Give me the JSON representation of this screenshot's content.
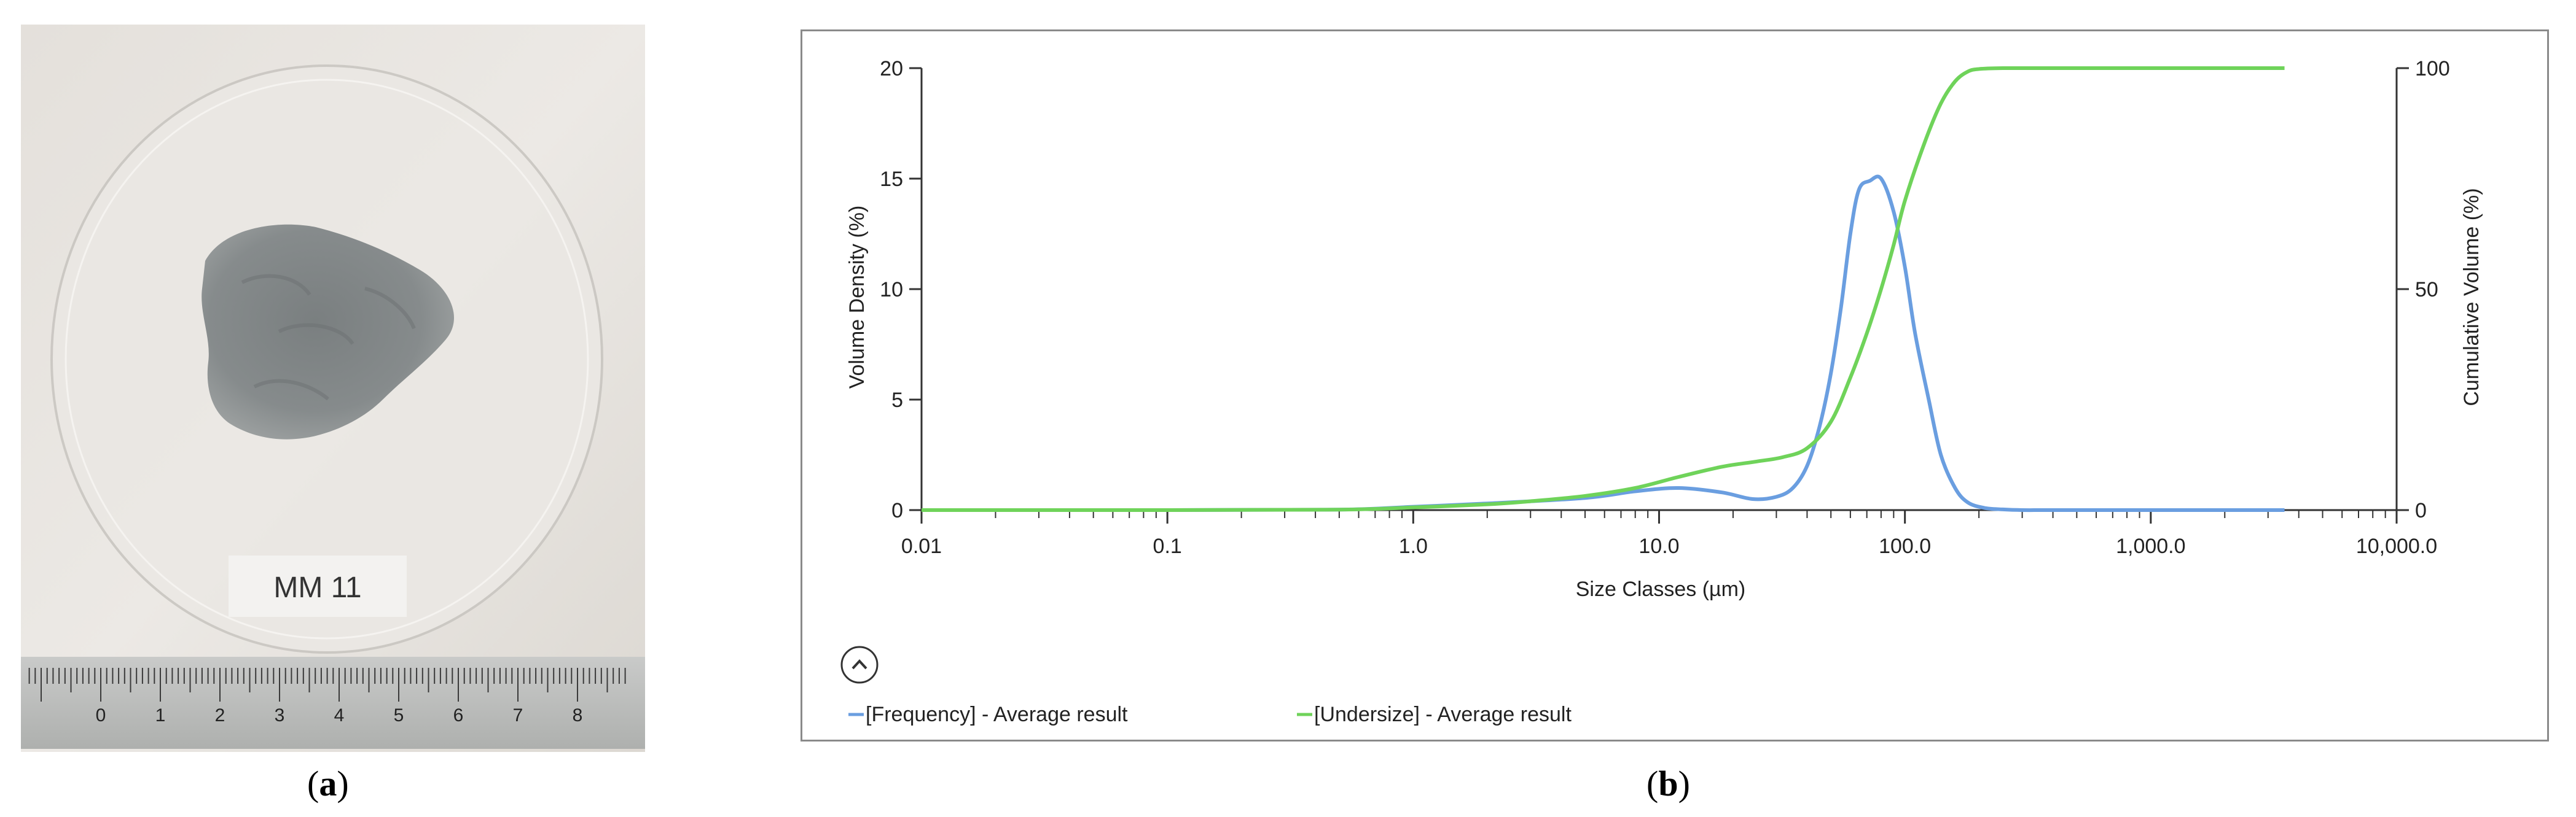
{
  "panels": {
    "a": {
      "open": "(",
      "letter": "a",
      "close": ")"
    },
    "b": {
      "open": "(",
      "letter": "b",
      "close": ")"
    }
  },
  "photo": {
    "sample_label": "MM 11",
    "ruler_ticks": [
      "0",
      "1",
      "2",
      "3",
      "4",
      "5",
      "6",
      "7",
      "8"
    ]
  },
  "chart_data": {
    "type": "line",
    "xlabel": "Size Classes (µm)",
    "ylabel": "Volume Density (%)",
    "y2label": "Cumulative Volume (%)",
    "xscale": "log",
    "xlim": [
      0.01,
      10000
    ],
    "ylim": [
      0,
      20
    ],
    "y2lim": [
      0,
      100
    ],
    "x_tick_labels": [
      "0.01",
      "0.1",
      "1.0",
      "10.0",
      "100.0",
      "1,000.0",
      "10,000.0"
    ],
    "y_tick_labels": [
      "0",
      "5",
      "10",
      "15",
      "20"
    ],
    "y2_tick_labels": [
      "0",
      "50",
      "100"
    ],
    "grid": false,
    "legend_placement": "bottom-left",
    "series": [
      {
        "name": "[Frequency] - Average result",
        "color": "#6a9ee0",
        "axis": "left",
        "x": [
          0.01,
          0.1,
          0.5,
          1.0,
          2.0,
          5.0,
          8.0,
          12.0,
          18.0,
          24.0,
          30.0,
          35.0,
          40.0,
          45.0,
          50.0,
          55.0,
          60.0,
          65.0,
          72.0,
          80.0,
          90.0,
          100.0,
          110.0,
          125.0,
          140.0,
          160.0,
          180.0,
          210.0,
          250.0,
          300.0,
          400.0,
          1000.0,
          3500.0
        ],
        "y": [
          0,
          0,
          0.02,
          0.15,
          0.3,
          0.55,
          0.85,
          1.0,
          0.8,
          0.5,
          0.6,
          1.0,
          2.0,
          3.8,
          6.2,
          9.2,
          12.5,
          14.5,
          14.9,
          15.0,
          13.5,
          11.0,
          8.0,
          5.0,
          2.5,
          1.0,
          0.35,
          0.1,
          0.03,
          0,
          0,
          0,
          0
        ]
      },
      {
        "name": "[Undersize] - Average result",
        "color": "#6fd35a",
        "axis": "right",
        "x": [
          0.01,
          0.1,
          0.5,
          1.0,
          2.0,
          3.0,
          5.0,
          8.0,
          12.0,
          18.0,
          25.0,
          32.0,
          40.0,
          50.0,
          60.0,
          70.0,
          80.0,
          90.0,
          100.0,
          120.0,
          140.0,
          160.0,
          180.0,
          200.0,
          250.0,
          400.0,
          1000.0,
          3500.0
        ],
        "y": [
          0,
          0,
          0.1,
          0.6,
          1.3,
          2.0,
          3.2,
          5.0,
          7.5,
          9.8,
          11.0,
          12.0,
          14.0,
          20.0,
          30.0,
          40.0,
          50.0,
          60.0,
          70.0,
          83.0,
          92.0,
          97.0,
          99.2,
          99.8,
          100,
          100,
          100,
          100
        ]
      }
    ]
  }
}
